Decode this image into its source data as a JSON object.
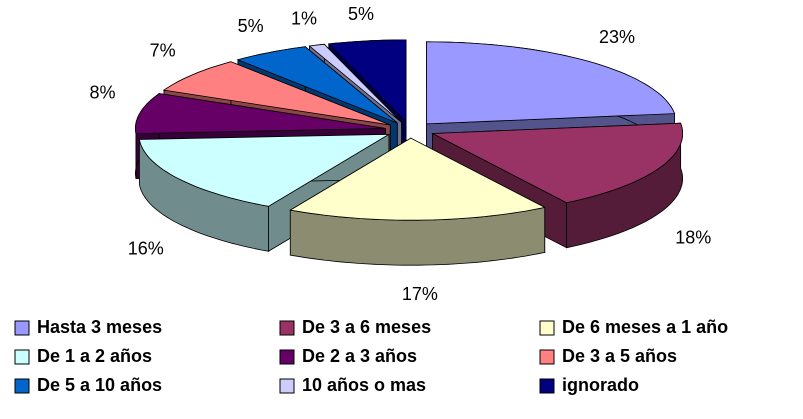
{
  "chart_data": {
    "type": "pie",
    "categories": [
      "Hasta 3 meses",
      "De 3 a 6 meses",
      "De 6 meses a 1 año",
      "De 1 a 2 años",
      "De 2 a 3 años",
      "De 3 a 5 años",
      "De 5 a 10 años",
      "10 años o mas",
      "ignorado"
    ],
    "values": [
      23,
      18,
      17,
      16,
      8,
      7,
      5,
      1,
      5
    ],
    "value_labels": [
      "23%",
      "18%",
      "17%",
      "16%",
      "8%",
      "7%",
      "5%",
      "1%",
      "5%"
    ],
    "colors": [
      "#9999ff",
      "#993366",
      "#ffffcc",
      "#ccffff",
      "#660066",
      "#ff8080",
      "#0066cc",
      "#ccccff",
      "#000080"
    ],
    "legend": "bottom"
  }
}
